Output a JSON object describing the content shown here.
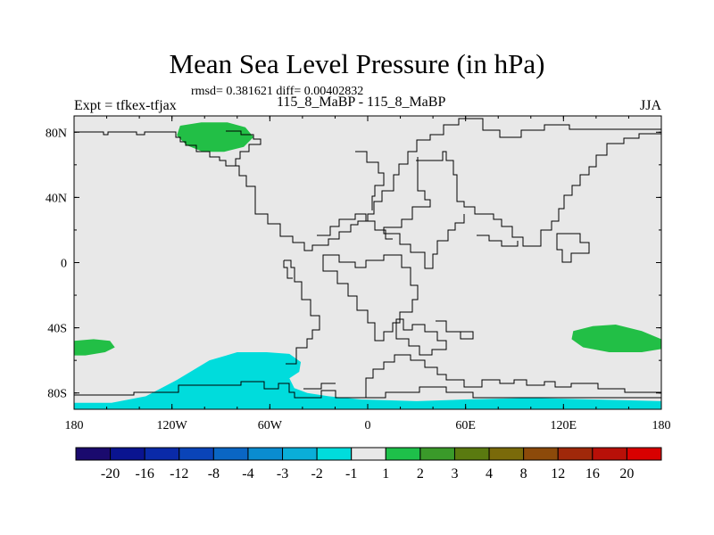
{
  "header": {
    "title": "Mean Sea Level Pressure (in hPa)",
    "stats": "rmsd= 0.381621 diff= 0.00402832",
    "experiment": "Expt = tfkex-tfjax",
    "cases": "115_8_MaBP - 115_8_MaBP",
    "season": "JJA"
  },
  "chart_data": {
    "type": "heatmap",
    "title": "Mean Sea Level Pressure (in hPa)",
    "subtitle": "rmsd= 0.381621 diff= 0.00402832",
    "left_string": "Expt = tfkex-tfjax",
    "center_string": "115_8_MaBP - 115_8_MaBP",
    "right_string": "JJA",
    "projection": "cylindrical-equidistant",
    "xlim": [
      -180,
      180
    ],
    "ylim": [
      -90,
      90
    ],
    "x_ticks": [
      {
        "value": -180,
        "label": "180"
      },
      {
        "value": -120,
        "label": "120W"
      },
      {
        "value": -60,
        "label": "60W"
      },
      {
        "value": 0,
        "label": "0"
      },
      {
        "value": 60,
        "label": "60E"
      },
      {
        "value": 120,
        "label": "120E"
      },
      {
        "value": 180,
        "label": "180"
      }
    ],
    "y_ticks": [
      {
        "value": 80,
        "label": "80N"
      },
      {
        "value": 40,
        "label": "40N"
      },
      {
        "value": 0,
        "label": "0"
      },
      {
        "value": -40,
        "label": "40S"
      },
      {
        "value": -80,
        "label": "80S"
      }
    ],
    "background_bin": "-1 to 1",
    "colorbar": {
      "orientation": "horizontal",
      "boundaries": [
        -20,
        -16,
        -12,
        -8,
        -4,
        -3,
        -2,
        -1,
        1,
        2,
        3,
        4,
        8,
        12,
        16,
        20
      ],
      "boundary_labels": [
        "-20",
        "-16",
        "-12",
        "-8",
        "-4",
        "-3",
        "-2",
        "-1",
        "1",
        "2",
        "3",
        "4",
        "8",
        "12",
        "16",
        "20"
      ],
      "colors": [
        "#1a0a6e",
        "#0a1490",
        "#0a2aa8",
        "#0a44b8",
        "#0a66c4",
        "#0a8cd0",
        "#0aaed8",
        "#00dcdc",
        "#e8e8e8",
        "#1ec04a",
        "#3a9a2a",
        "#5a7a10",
        "#7a6a0a",
        "#8c4a0a",
        "#a0280a",
        "#b81008",
        "#d80000"
      ]
    },
    "regions": [
      {
        "name": "Arctic high, North America",
        "bin": "1 to 2",
        "color": "#22bf46",
        "polygon": [
          [
            -115,
            84
          ],
          [
            -102,
            86
          ],
          [
            -86,
            86
          ],
          [
            -75,
            83
          ],
          [
            -70,
            77
          ],
          [
            -76,
            71
          ],
          [
            -88,
            68
          ],
          [
            -101,
            68
          ],
          [
            -111,
            72
          ],
          [
            -117,
            78
          ]
        ]
      },
      {
        "name": "South Pacific",
        "bin": "1 to 2",
        "color": "#22bf46",
        "polygon": [
          [
            -180,
            -48
          ],
          [
            -168,
            -47
          ],
          [
            -158,
            -48
          ],
          [
            -155,
            -52
          ],
          [
            -161,
            -55
          ],
          [
            -173,
            -57
          ],
          [
            -180,
            -57
          ]
        ]
      },
      {
        "name": "Southern Ocean, Australia sector",
        "bin": "1 to 2",
        "color": "#22bf46",
        "polygon": [
          [
            -180,
            -47
          ],
          [
            -168,
            -46
          ],
          [
            -157,
            -51
          ],
          [
            -163,
            -57
          ],
          [
            -180,
            -57
          ]
        ],
        "lon_offset": 0,
        "visible": false
      },
      {
        "name": "Southern Ocean, east of Australia",
        "bin": "1 to 2",
        "color": "#22bf46",
        "polygon": [
          [
            180,
            -47
          ],
          [
            168,
            -42
          ],
          [
            152,
            -38
          ],
          [
            138,
            -39
          ],
          [
            126,
            -42
          ],
          [
            125,
            -47
          ],
          [
            132,
            -52
          ],
          [
            148,
            -55
          ],
          [
            168,
            -55
          ],
          [
            180,
            -53
          ]
        ]
      },
      {
        "name": "Antarctic low",
        "bin": "-2 to -1",
        "color": "#00dcdc",
        "polygon": [
          [
            -180,
            -86
          ],
          [
            -157,
            -86
          ],
          [
            -136,
            -82
          ],
          [
            -117,
            -72
          ],
          [
            -97,
            -60
          ],
          [
            -80,
            -55
          ],
          [
            -62,
            -55
          ],
          [
            -48,
            -56
          ],
          [
            -41,
            -61
          ],
          [
            -42,
            -67
          ],
          [
            -48,
            -71
          ],
          [
            -45,
            -77
          ],
          [
            -37,
            -80
          ],
          [
            -24,
            -82
          ],
          [
            -4,
            -84
          ],
          [
            30,
            -85
          ],
          [
            60,
            -84
          ],
          [
            100,
            -83
          ],
          [
            180,
            -85
          ],
          [
            180,
            -90
          ],
          [
            -180,
            -90
          ]
        ]
      }
    ]
  }
}
